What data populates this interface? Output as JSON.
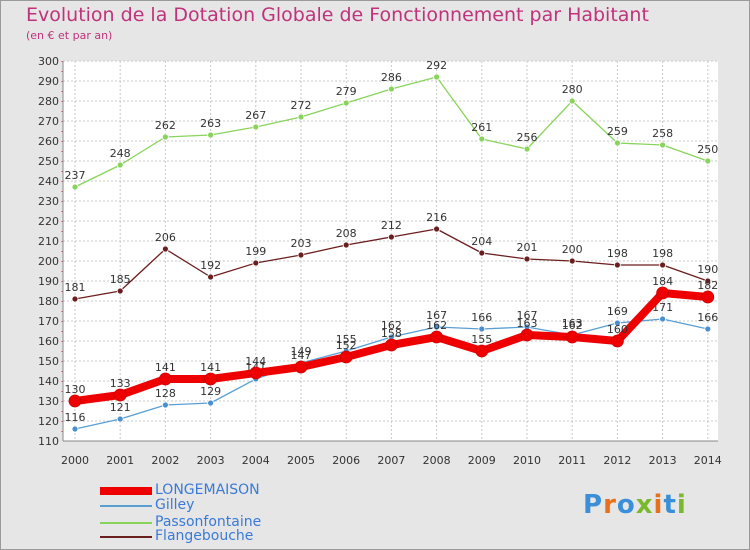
{
  "header": {
    "title": "Evolution de la Dotation Globale de Fonctionnement par Habitant",
    "subtitle": "(en € et par an)"
  },
  "logo": {
    "letters": [
      "P",
      "r",
      "o",
      "x",
      "i",
      "t",
      "i"
    ],
    "colors": [
      "#3a8fd8",
      "#e8701a",
      "#3a8fd8",
      "#7ab82e",
      "#e8701a",
      "#3a8fd8",
      "#7ab82e"
    ]
  },
  "chart_data": {
    "type": "line",
    "title": "Evolution de la Dotation Globale de Fonctionnement par Habitant",
    "subtitle": "(en € et par an)",
    "x": [
      2000,
      2001,
      2002,
      2003,
      2004,
      2005,
      2006,
      2007,
      2008,
      2009,
      2010,
      2011,
      2012,
      2013,
      2014
    ],
    "ylim": [
      110,
      300
    ],
    "yticks": [
      110,
      120,
      130,
      140,
      150,
      160,
      170,
      180,
      190,
      200,
      210,
      220,
      230,
      240,
      250,
      260,
      270,
      280,
      290,
      300
    ],
    "grid": true,
    "legend_position": "bottom-left",
    "series": [
      {
        "name": "Passonfontaine",
        "color": "#88d45a",
        "dot": "#88d45a",
        "width": 1.3,
        "labels": true,
        "label_color": "#333333",
        "values": [
          237,
          248,
          262,
          263,
          267,
          272,
          279,
          286,
          292,
          261,
          256,
          280,
          259,
          258,
          250
        ]
      },
      {
        "name": "Flangebouche",
        "color": "#6b1e1e",
        "dot": "#6b1e1e",
        "width": 1.3,
        "labels": true,
        "label_color": "#333333",
        "values": [
          181,
          185,
          206,
          192,
          199,
          203,
          208,
          212,
          216,
          204,
          201,
          200,
          198,
          198,
          190
        ]
      },
      {
        "name": "Gilley",
        "color": "#5a9fd4",
        "dot": "#4a8fd0",
        "width": 1.3,
        "labels": true,
        "label_color": "#333333",
        "values": [
          116,
          121,
          128,
          129,
          141,
          149,
          155,
          162,
          167,
          166,
          167,
          163,
          169,
          171,
          166
        ]
      },
      {
        "name": "LONGEMAISON",
        "color": "#ee0000",
        "dot": "#ee0000",
        "width": 8,
        "labels": true,
        "label_color": "#333333",
        "values": [
          130,
          133,
          141,
          141,
          144,
          147,
          152,
          158,
          162,
          155,
          163,
          162,
          160,
          184,
          182
        ]
      }
    ]
  }
}
